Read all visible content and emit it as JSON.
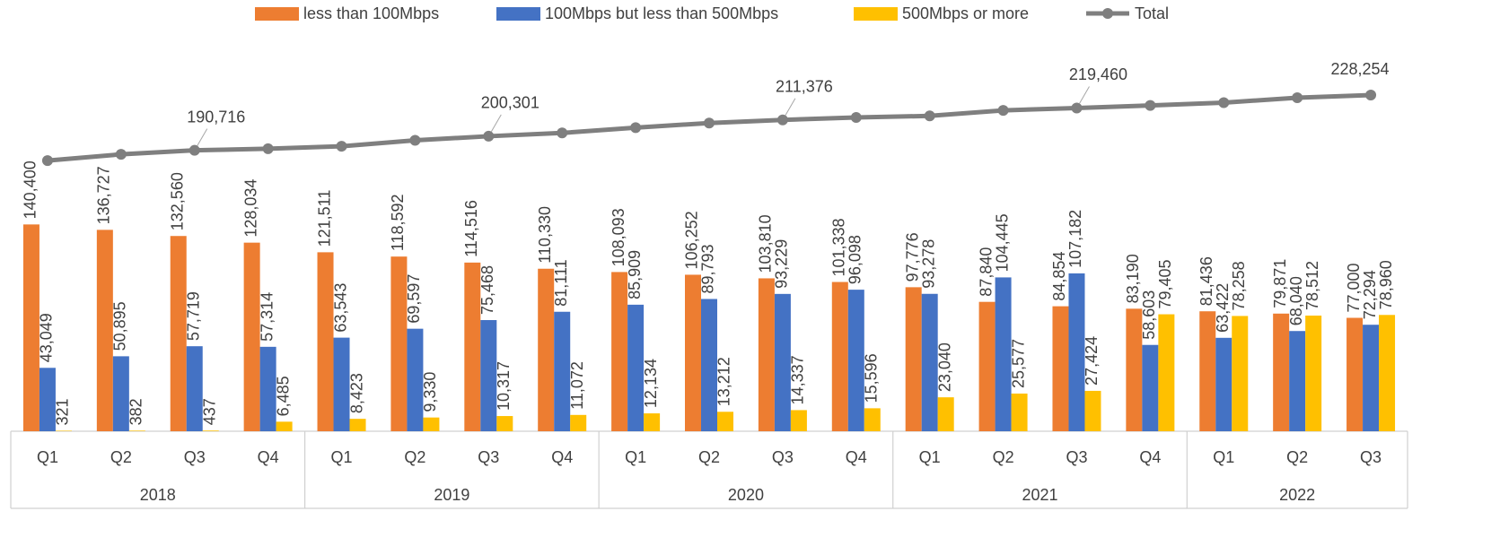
{
  "chart_data": {
    "type": "bar",
    "categories": [
      "Q1",
      "Q2",
      "Q3",
      "Q4",
      "Q1",
      "Q2",
      "Q3",
      "Q4",
      "Q1",
      "Q2",
      "Q3",
      "Q4",
      "Q1",
      "Q2",
      "Q3",
      "Q4",
      "Q1",
      "Q2",
      "Q3"
    ],
    "category_groups": [
      {
        "label": "2018",
        "count": 4
      },
      {
        "label": "2019",
        "count": 4
      },
      {
        "label": "2020",
        "count": 4
      },
      {
        "label": "2021",
        "count": 4
      },
      {
        "label": "2022",
        "count": 3
      }
    ],
    "ylim": [
      0,
      280000
    ],
    "legend": "top",
    "series": [
      {
        "name": "less than 100Mbps",
        "color": "#ed7d31",
        "values": [
          140400,
          136727,
          132560,
          128034,
          121511,
          118592,
          114516,
          110330,
          108093,
          106252,
          103810,
          101338,
          97776,
          87840,
          84854,
          83190,
          81436,
          79871,
          77000
        ],
        "value_labels": [
          "140,400",
          "136,727",
          "132,560",
          "128,034",
          "121,511",
          "118,592",
          "114,516",
          "110,330",
          "108,093",
          "106,252",
          "103,810",
          "101,338",
          "97,776",
          "87,840",
          "84,854",
          "83,190",
          "81,436",
          "79,871",
          "77,000"
        ]
      },
      {
        "name": "100Mbps but less than 500Mbps",
        "color": "#4472c4",
        "values": [
          43049,
          50895,
          57719,
          57314,
          63543,
          69597,
          75468,
          81111,
          85909,
          89793,
          93229,
          96098,
          93278,
          104445,
          107182,
          58603,
          63422,
          68040,
          72294
        ],
        "value_labels": [
          "43,049",
          "50,895",
          "57,719",
          "57,314",
          "63,543",
          "69,597",
          "75,468",
          "81,111",
          "85,909",
          "89,793",
          "93,229",
          "96,098",
          "93,278",
          "104,445",
          "107,182",
          "58,603",
          "63,422",
          "68,040",
          "72,294"
        ]
      },
      {
        "name": "500Mbps or more",
        "color": "#ffc000",
        "values": [
          321,
          382,
          437,
          6485,
          8423,
          9330,
          10317,
          11072,
          12134,
          13212,
          14337,
          15596,
          23040,
          25577,
          27424,
          79405,
          78258,
          78512,
          78960
        ],
        "value_labels": [
          "321",
          "382",
          "437",
          "6,485",
          "8,423",
          "9,330",
          "10,317",
          "11,072",
          "12,134",
          "13,212",
          "14,337",
          "15,596",
          "23,040",
          "25,577",
          "27,424",
          "79,405",
          "78,258",
          "78,512",
          "78,960"
        ]
      },
      {
        "name": "Total",
        "type": "line",
        "color": "#7f7f7f",
        "values": [
          183770,
          188004,
          190716,
          191833,
          193477,
          197519,
          200301,
          202513,
          206136,
          209257,
          211376,
          213032,
          214094,
          217862,
          219460,
          221198,
          223116,
          226423,
          228254
        ],
        "value_labels": [
          null,
          null,
          "190,716",
          null,
          null,
          null,
          "200,301",
          null,
          null,
          null,
          "211,376",
          null,
          null,
          null,
          "219,460",
          null,
          null,
          null,
          "228,254"
        ]
      }
    ]
  }
}
